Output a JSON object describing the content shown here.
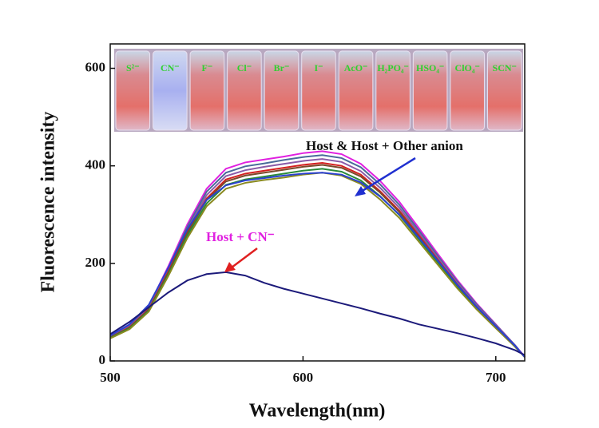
{
  "chart_data": {
    "type": "line",
    "x_label": "Wavelength(nm)",
    "y_label": "Fluorescence intensity",
    "x": [
      500,
      510,
      520,
      530,
      540,
      550,
      560,
      570,
      580,
      590,
      600,
      610,
      620,
      630,
      640,
      650,
      660,
      670,
      680,
      690,
      700,
      710,
      715
    ],
    "series": [
      {
        "color": "#e020e0",
        "values": [
          51,
          73,
          112,
          193,
          280,
          353,
          394,
          407,
          413,
          419,
          426,
          430,
          424,
          404,
          369,
          326,
          273,
          219,
          166,
          118,
          75,
          32,
          9
        ]
      },
      {
        "color": "#4a6a9a",
        "values": [
          50,
          71,
          110,
          189,
          275,
          347,
          386,
          399,
          405,
          412,
          418,
          422,
          416,
          397,
          362,
          320,
          268,
          215,
          163,
          116,
          74,
          32,
          8
        ]
      },
      {
        "color": "#8a5aa8",
        "values": [
          49,
          70,
          108,
          185,
          270,
          340,
          379,
          391,
          398,
          404,
          410,
          414,
          408,
          389,
          355,
          314,
          263,
          211,
          160,
          113,
          72,
          31,
          8
        ]
      },
      {
        "color": "#d42020",
        "values": [
          48,
          69,
          106,
          182,
          265,
          333,
          372,
          384,
          390,
          396,
          402,
          406,
          400,
          382,
          348,
          308,
          258,
          207,
          157,
          111,
          71,
          30,
          8
        ]
      },
      {
        "color": "#7a4a2a",
        "values": [
          48,
          68,
          105,
          180,
          262,
          330,
          368,
          380,
          386,
          392,
          398,
          402,
          396,
          378,
          345,
          305,
          255,
          205,
          155,
          110,
          70,
          30,
          8
        ]
      },
      {
        "color": "#2a8a3a",
        "values": [
          47,
          67,
          103,
          176,
          257,
          323,
          361,
          372,
          378,
          384,
          390,
          394,
          388,
          370,
          338,
          299,
          250,
          201,
          152,
          108,
          69,
          29,
          8
        ]
      },
      {
        "color": "#8a8a20",
        "values": [
          46,
          65,
          101,
          173,
          252,
          317,
          353,
          365,
          371,
          376,
          382,
          386,
          380,
          363,
          331,
          293,
          245,
          197,
          149,
          106,
          67,
          29,
          8
        ]
      },
      {
        "color": "#2a40d0",
        "values": [
          52,
          75,
          115,
          190,
          270,
          330,
          360,
          370,
          375,
          380,
          384,
          386,
          382,
          366,
          337,
          300,
          253,
          205,
          156,
          111,
          71,
          31,
          8
        ]
      },
      {
        "color": "#1c1a7a",
        "values": [
          55,
          80,
          110,
          140,
          165,
          178,
          182,
          175,
          160,
          148,
          138,
          128,
          118,
          108,
          97,
          87,
          75,
          66,
          57,
          47,
          36,
          22,
          12
        ]
      }
    ],
    "xlim": [
      500,
      715
    ],
    "ylim": [
      0,
      650
    ],
    "xticks": [
      500,
      600,
      700
    ],
    "yticks": [
      0,
      200,
      400,
      600
    ],
    "grid": false,
    "annotations": [
      "Host & Host + Other anion",
      "Host + CN⁻"
    ],
    "inset_labels": [
      "S²⁻",
      "CN⁻",
      "F⁻",
      "Cl⁻",
      "Br⁻",
      "I⁻",
      "AcO⁻",
      "H₂PO₄⁻",
      "HSO₄⁻",
      "ClO₄⁻",
      "SCN⁻"
    ]
  }
}
